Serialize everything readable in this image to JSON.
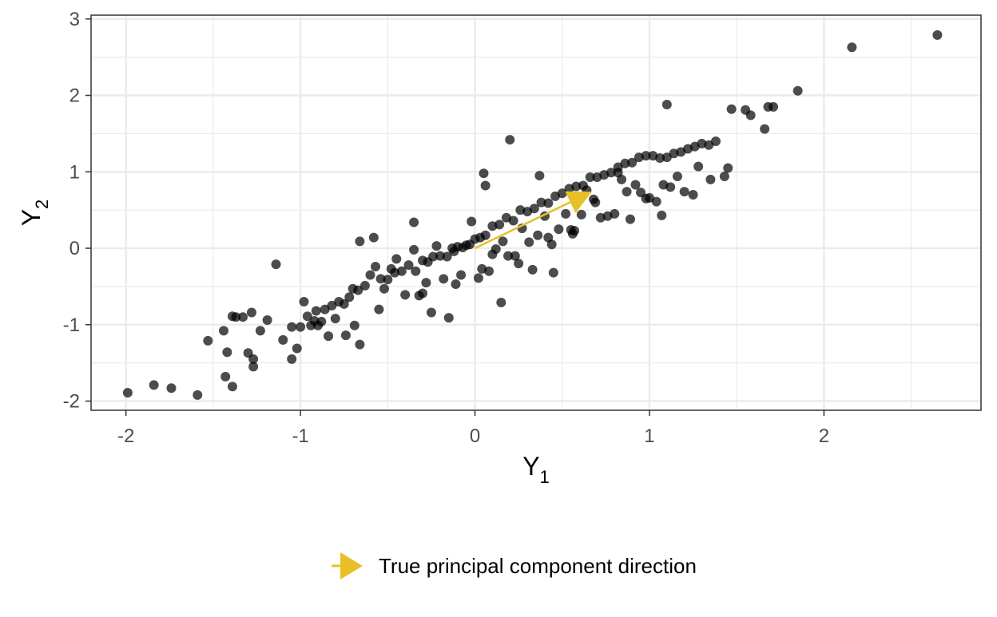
{
  "chart_data": {
    "type": "scatter",
    "title": "",
    "xlabel": "Y",
    "xlabel_subscript": "1",
    "ylabel": "Y",
    "ylabel_subscript": "2",
    "xlim": [
      -2.2,
      2.9
    ],
    "ylim": [
      -2.12,
      3.05
    ],
    "x_ticks": [
      -2,
      -1,
      0,
      1,
      2
    ],
    "x_tick_labels": [
      "-2",
      "-1",
      "0",
      "1",
      "2"
    ],
    "y_ticks": [
      -2,
      -1,
      0,
      1,
      2,
      3
    ],
    "y_tick_labels": [
      "-2",
      "-1",
      "0",
      "1",
      "2",
      "3"
    ],
    "grid": true,
    "colors": {
      "points": "#000000",
      "arrow": "#E7C027",
      "grid": "#EBEBEB",
      "panel_border": "#333333"
    },
    "series": [
      {
        "x": [
          -1.99,
          -1.84,
          -1.74,
          -1.59,
          -1.53,
          -1.44,
          -1.43,
          -1.42,
          -1.39,
          -1.39,
          -1.37,
          -1.33,
          -1.3,
          -1.27,
          -1.28,
          -1.27,
          -1.23,
          -1.19,
          -1.14,
          -1.05,
          -1.02,
          -1.0,
          -0.96,
          -0.94,
          -0.92,
          -0.9,
          -0.88,
          -0.86,
          -0.82,
          -0.78,
          -0.75,
          -0.72,
          -0.7,
          -0.67,
          -0.63,
          -0.6,
          -0.57,
          -0.54,
          -0.5,
          -0.46,
          -0.42,
          -0.38,
          -0.34,
          -0.3,
          -0.27,
          -0.24,
          -0.2,
          -0.16,
          -0.13,
          -0.1,
          -0.07,
          -0.03,
          0.0,
          0.03,
          0.06,
          0.1,
          0.14,
          0.18,
          0.22,
          0.26,
          0.3,
          0.34,
          0.38,
          0.42,
          0.46,
          0.5,
          0.54,
          0.58,
          0.62,
          0.66,
          0.7,
          0.74,
          0.78,
          0.82,
          0.86,
          0.9,
          0.94,
          0.98,
          1.02,
          1.06,
          1.1,
          1.14,
          1.18,
          1.22,
          1.26,
          1.3,
          1.34,
          1.38,
          1.43,
          1.45,
          1.47,
          1.55,
          1.58,
          1.66,
          1.68,
          1.71,
          1.85,
          2.16,
          2.65,
          0.2,
          0.05,
          0.06,
          1.1,
          1.07,
          0.15,
          -0.25,
          -0.35,
          -0.02,
          0.25,
          0.45,
          0.55,
          0.69,
          0.72,
          0.89,
          0.37,
          0.42,
          -0.66,
          -0.58,
          -0.45,
          -0.35,
          -0.22,
          -0.12,
          -0.05,
          0.1,
          0.16,
          0.31,
          0.33,
          0.52,
          0.57,
          0.8,
          0.82,
          0.95,
          1.0,
          1.12,
          1.25,
          1.35,
          -0.8,
          -0.69,
          -0.52,
          -0.48,
          -0.32,
          -0.28,
          -0.18,
          -0.08,
          0.02,
          0.08,
          0.12,
          0.27,
          0.4,
          0.48,
          0.61,
          0.64,
          0.76,
          0.87,
          0.92,
          1.04,
          1.16,
          1.28,
          -1.1,
          -1.05,
          -0.98,
          -0.91,
          -0.84,
          -0.74,
          -0.66,
          -0.55,
          -0.4,
          -0.3,
          -0.15,
          -0.11,
          0.04,
          0.19,
          0.23,
          0.36,
          0.44,
          0.56,
          0.68,
          0.84,
          0.98,
          1.08,
          1.2
        ],
        "y": [
          -1.89,
          -1.79,
          -1.83,
          -1.92,
          -1.21,
          -1.08,
          -1.68,
          -1.36,
          -1.81,
          -0.89,
          -0.9,
          -0.9,
          -1.37,
          -1.45,
          -0.84,
          -1.55,
          -1.08,
          -0.94,
          -0.21,
          -1.45,
          -1.31,
          -1.03,
          -0.89,
          -1.01,
          -0.95,
          -1.01,
          -0.96,
          -0.8,
          -0.75,
          -0.7,
          -0.73,
          -0.64,
          -0.53,
          -0.55,
          -0.49,
          -0.35,
          -0.24,
          -0.4,
          -0.41,
          -0.32,
          -0.3,
          -0.22,
          -0.3,
          -0.16,
          -0.18,
          -0.11,
          -0.1,
          -0.11,
          0.0,
          0.02,
          0.01,
          0.05,
          0.12,
          0.14,
          0.17,
          0.29,
          0.31,
          0.4,
          0.36,
          0.5,
          0.48,
          0.52,
          0.6,
          0.59,
          0.68,
          0.72,
          0.78,
          0.81,
          0.82,
          0.93,
          0.93,
          0.96,
          0.99,
          1.06,
          1.11,
          1.12,
          1.19,
          1.21,
          1.21,
          1.18,
          1.19,
          1.24,
          1.26,
          1.3,
          1.33,
          1.37,
          1.35,
          1.4,
          0.94,
          1.05,
          1.82,
          1.81,
          1.74,
          1.56,
          1.85,
          1.85,
          2.06,
          2.63,
          2.79,
          1.42,
          0.98,
          0.82,
          1.88,
          0.43,
          -0.71,
          -0.84,
          0.34,
          0.35,
          -0.2,
          -0.32,
          0.24,
          0.6,
          0.4,
          0.38,
          0.95,
          0.14,
          0.09,
          0.14,
          -0.14,
          -0.02,
          0.03,
          -0.04,
          0.04,
          -0.08,
          0.09,
          0.08,
          -0.28,
          0.45,
          0.23,
          0.45,
          0.99,
          0.73,
          0.66,
          0.8,
          0.7,
          0.9,
          -0.92,
          -1.01,
          -0.53,
          -0.27,
          -0.62,
          -0.45,
          -0.4,
          -0.35,
          -0.39,
          -0.3,
          -0.01,
          0.26,
          0.42,
          0.25,
          0.44,
          0.76,
          0.42,
          0.74,
          0.83,
          0.61,
          0.94,
          1.07,
          -1.2,
          -1.03,
          -0.7,
          -0.82,
          -1.15,
          -1.14,
          -1.26,
          -0.8,
          -0.61,
          -0.59,
          -0.91,
          -0.47,
          -0.27,
          -0.1,
          -0.1,
          0.17,
          0.05,
          0.19,
          0.64,
          0.9,
          0.65,
          0.83,
          0.74
        ]
      }
    ],
    "arrow": {
      "from": [
        0,
        0
      ],
      "to": [
        0.67,
        0.74
      ]
    },
    "legend": {
      "position": "bottom",
      "label": "True principal component direction"
    }
  }
}
